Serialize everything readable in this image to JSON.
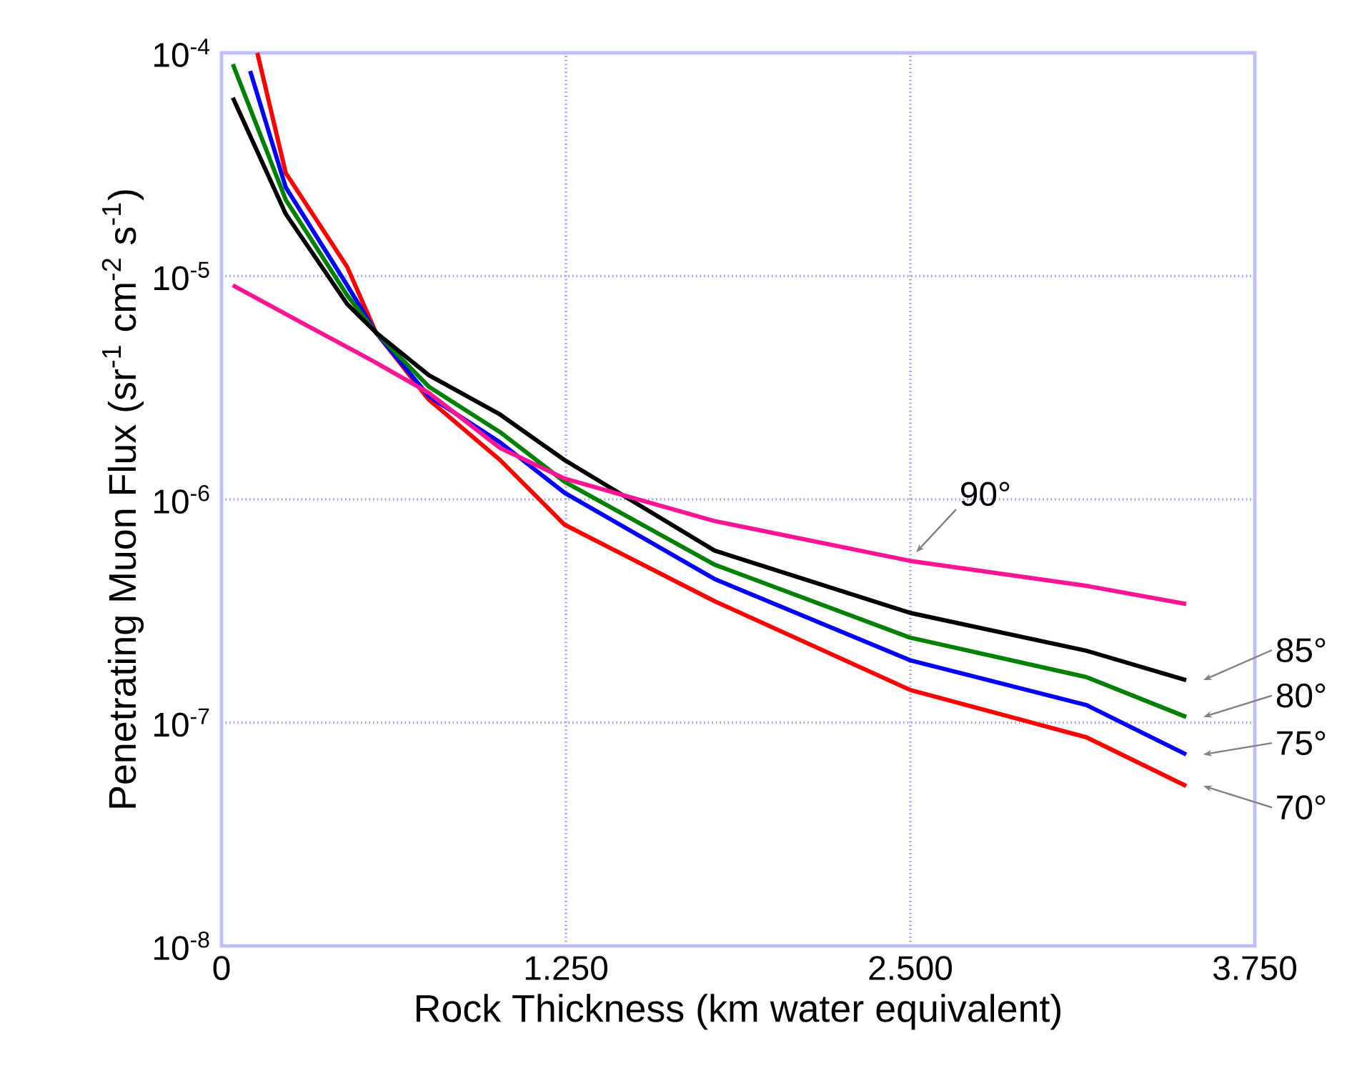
{
  "chart_data": {
    "type": "line",
    "xlabel": "Rock Thickness (km water equivalent)",
    "ylabel": "Penetrating Muon Flux (sr$^{-1}$ cm$^{-2}$ s$^{-1}$)",
    "log": "y",
    "xlim": [
      0,
      3.75
    ],
    "xticks": [
      0,
      {
        "value": 1.25,
        "label": "1.250"
      },
      {
        "value": 2.5,
        "label": "2.500"
      },
      {
        "value": 3.75,
        "label": "3.750"
      }
    ],
    "ylim": [
      1e-08,
      0.0001
    ],
    "yticks": [
      {
        "value": 1e-08,
        "label": "10$^{-8}$"
      },
      {
        "value": 1e-07,
        "label": "10$^{-7}$"
      },
      {
        "value": 1e-06,
        "label": "10$^{-6}$"
      },
      {
        "value": 1e-05,
        "label": "10$^{-5}$"
      },
      {
        "value": 0.0001,
        "label": "10$^{-4}$"
      }
    ],
    "grid": true,
    "marker": "none",
    "line_style": "solid",
    "series": [
      {
        "name": "70°",
        "color": "#ff0000",
        "x": [
          0.13,
          0.233,
          0.456,
          0.56,
          0.752,
          1.011,
          1.245,
          1.789,
          2.5,
          3.138,
          3.501
        ],
        "values": [
          0.0001,
          2.9e-05,
          1.1e-05,
          5.6e-06,
          2.8e-06,
          1.5e-06,
          7.7e-07,
          3.5e-07,
          1.4e-07,
          8.6e-08,
          5.2e-08
        ]
      },
      {
        "name": "75°",
        "color": "#0000ff",
        "x": [
          0.104,
          0.233,
          0.456,
          0.56,
          0.752,
          1.011,
          1.245,
          1.789,
          2.5,
          3.138,
          3.501
        ],
        "values": [
          8.3e-05,
          2.5e-05,
          9.1e-06,
          5.6e-06,
          2.9e-06,
          1.8e-06,
          1.07e-06,
          4.4e-07,
          1.9e-07,
          1.2e-07,
          7.2e-08
        ]
      },
      {
        "name": "80°",
        "color": "#008000",
        "x": [
          0.041,
          0.233,
          0.456,
          0.56,
          0.752,
          1.011,
          1.245,
          1.789,
          2.5,
          3.138,
          3.501
        ],
        "values": [
          8.9e-05,
          2.2e-05,
          8.2e-06,
          5.6e-06,
          3.2e-06,
          2e-06,
          1.2e-06,
          5.1e-07,
          2.4e-07,
          1.6e-07,
          1.06e-07
        ]
      },
      {
        "name": "85°",
        "color": "#000000",
        "x": [
          0.041,
          0.233,
          0.456,
          0.56,
          0.752,
          1.011,
          1.245,
          1.789,
          2.5,
          3.138,
          3.501
        ],
        "values": [
          6.3e-05,
          1.9e-05,
          7.5e-06,
          5.6e-06,
          3.6e-06,
          2.4e-06,
          1.5e-06,
          5.9e-07,
          3.1e-07,
          2.1e-07,
          1.55e-07
        ]
      },
      {
        "name": "90°",
        "color": "#ff1493",
        "x": [
          0.041,
          0.3,
          0.56,
          0.752,
          1.011,
          1.245,
          1.789,
          2.5,
          3.138,
          3.501
        ],
        "values": [
          9.1e-06,
          6.1e-06,
          4.1e-06,
          3e-06,
          1.7e-06,
          1.24e-06,
          8e-07,
          5.3e-07,
          4.1e-07,
          3.4e-07
        ]
      }
    ]
  }
}
